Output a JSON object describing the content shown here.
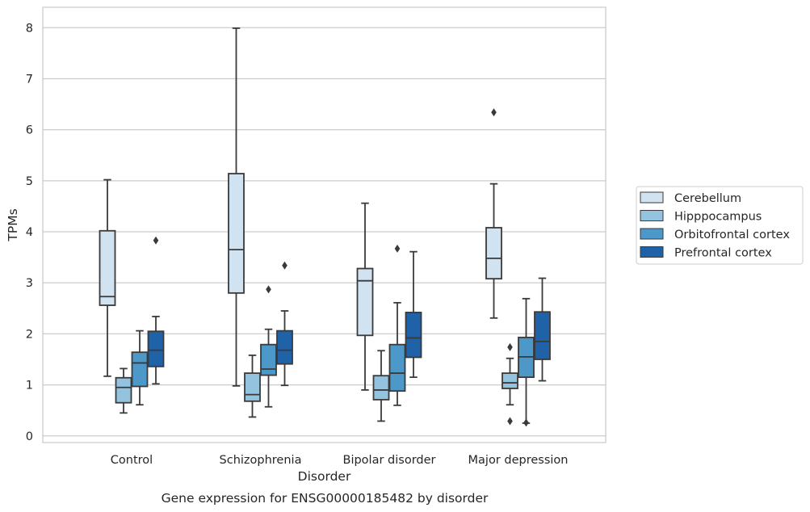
{
  "caption": "Gene expression for ENSG00000185482 by disorder",
  "colors": {
    "Cerebellum": "#d1e2f1",
    "Hipppocampus": "#93c3df",
    "Orbitofrontal cortex": "#4b98c9",
    "Prefrontal cortex": "#1f62a8",
    "edge": "#3a3a3a",
    "grid": "#cccccc"
  },
  "chart_data": {
    "type": "box",
    "title": "",
    "xlabel": "Disorder",
    "ylabel": "TPMs",
    "ylim": [
      -0.13,
      8.4
    ],
    "yticks": [
      0,
      1,
      2,
      3,
      4,
      5,
      6,
      7,
      8
    ],
    "grid": true,
    "legend_position": "right",
    "categories": [
      "Control",
      "Schizophrenia",
      "Bipolar disorder",
      "Major depression"
    ],
    "series": [
      {
        "name": "Cerebellum",
        "boxes": [
          {
            "whislo": 1.17,
            "q1": 2.56,
            "med": 2.73,
            "q3": 4.02,
            "whishi": 5.02,
            "fliers": []
          },
          {
            "whislo": 0.98,
            "q1": 2.8,
            "med": 3.65,
            "q3": 5.14,
            "whishi": 7.99,
            "fliers": []
          },
          {
            "whislo": 0.9,
            "q1": 1.97,
            "med": 3.04,
            "q3": 3.28,
            "whishi": 4.56,
            "fliers": []
          },
          {
            "whislo": 2.31,
            "q1": 3.08,
            "med": 3.48,
            "q3": 4.08,
            "whishi": 4.94,
            "fliers": [
              6.34
            ]
          }
        ]
      },
      {
        "name": "Hipppocampus",
        "boxes": [
          {
            "whislo": 0.45,
            "q1": 0.65,
            "med": 0.95,
            "q3": 1.14,
            "whishi": 1.32,
            "fliers": []
          },
          {
            "whislo": 0.37,
            "q1": 0.68,
            "med": 0.81,
            "q3": 1.23,
            "whishi": 1.58,
            "fliers": []
          },
          {
            "whislo": 0.29,
            "q1": 0.71,
            "med": 0.9,
            "q3": 1.18,
            "whishi": 1.67,
            "fliers": []
          },
          {
            "whislo": 0.61,
            "q1": 0.93,
            "med": 1.04,
            "q3": 1.23,
            "whishi": 1.52,
            "fliers": [
              1.74,
              0.29
            ]
          }
        ]
      },
      {
        "name": "Orbitofrontal cortex",
        "boxes": [
          {
            "whislo": 0.61,
            "q1": 0.97,
            "med": 1.43,
            "q3": 1.64,
            "whishi": 2.06,
            "fliers": []
          },
          {
            "whislo": 0.57,
            "q1": 1.19,
            "med": 1.31,
            "q3": 1.79,
            "whishi": 2.09,
            "fliers": [
              2.87
            ]
          },
          {
            "whislo": 0.6,
            "q1": 0.88,
            "med": 1.23,
            "q3": 1.79,
            "whishi": 2.61,
            "fliers": [
              3.67
            ]
          },
          {
            "whislo": 0.25,
            "q1": 1.15,
            "med": 1.55,
            "q3": 1.93,
            "whishi": 2.69,
            "fliers": [
              0.26
            ]
          }
        ]
      },
      {
        "name": "Prefrontal cortex",
        "boxes": [
          {
            "whislo": 1.02,
            "q1": 1.36,
            "med": 1.68,
            "q3": 2.05,
            "whishi": 2.34,
            "fliers": [
              3.83
            ]
          },
          {
            "whislo": 0.99,
            "q1": 1.41,
            "med": 1.68,
            "q3": 2.06,
            "whishi": 2.45,
            "fliers": [
              3.34
            ]
          },
          {
            "whislo": 1.15,
            "q1": 1.54,
            "med": 1.92,
            "q3": 2.42,
            "whishi": 3.61,
            "fliers": []
          },
          {
            "whislo": 1.08,
            "q1": 1.5,
            "med": 1.85,
            "q3": 2.43,
            "whishi": 3.09,
            "fliers": []
          }
        ]
      }
    ]
  }
}
